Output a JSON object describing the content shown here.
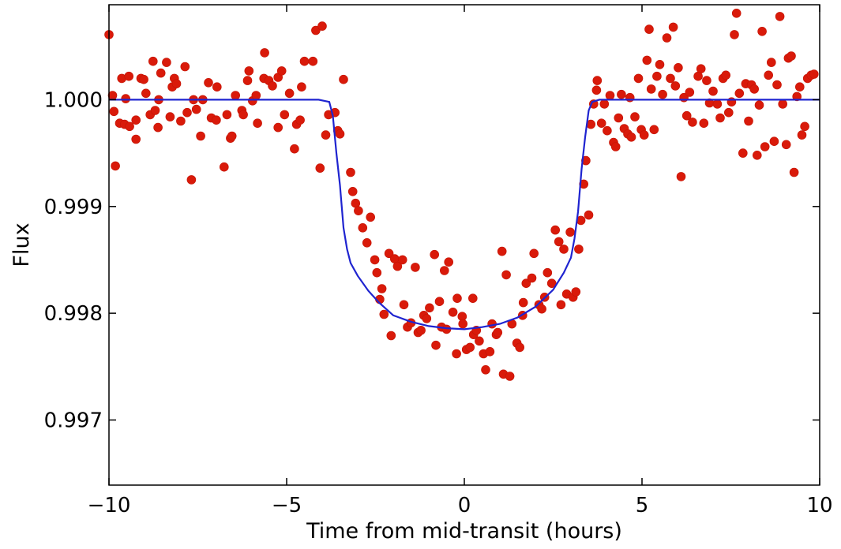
{
  "chart_data": {
    "type": "scatter",
    "xlabel": "Time from mid-transit (hours)",
    "ylabel": "Flux",
    "xlim": [
      -10,
      10
    ],
    "ylim": [
      0.99639,
      1.00089
    ],
    "x_ticks": [
      -10,
      -5,
      0,
      5,
      10
    ],
    "x_tick_labels": [
      "−10",
      "−5",
      "0",
      "5",
      "10"
    ],
    "y_ticks": [
      0.997,
      0.998,
      0.999,
      1.0
    ],
    "y_tick_labels": [
      "0.997",
      "0.998",
      "0.999",
      "1.000"
    ],
    "grid": false,
    "series": [
      {
        "kind": "points",
        "color": "#d91a0a",
        "points": [
          [
            -10.0,
            1.00061
          ],
          [
            -9.9,
            1.00004
          ],
          [
            -9.86,
            0.99989
          ],
          [
            -9.82,
            0.99938
          ],
          [
            -9.7,
            0.99978
          ],
          [
            -9.64,
            1.0002
          ],
          [
            -9.56,
            0.99977
          ],
          [
            -9.53,
            1.00001
          ],
          [
            -9.44,
            1.00022
          ],
          [
            -9.42,
            0.99975
          ],
          [
            -9.24,
            0.99981
          ],
          [
            -9.24,
            0.99963
          ],
          [
            -9.1,
            1.0002
          ],
          [
            -9.02,
            1.00019
          ],
          [
            -8.96,
            1.00006
          ],
          [
            -8.84,
            0.99986
          ],
          [
            -8.76,
            1.00036
          ],
          [
            -8.7,
            0.9999
          ],
          [
            -8.62,
            0.99974
          ],
          [
            -8.6,
            1.0
          ],
          [
            -8.54,
            1.00025
          ],
          [
            -8.38,
            1.00035
          ],
          [
            -8.28,
            0.99984
          ],
          [
            -8.22,
            1.00012
          ],
          [
            -8.16,
            1.0002
          ],
          [
            -8.1,
            1.00015
          ],
          [
            -7.98,
            0.9998
          ],
          [
            -7.86,
            1.00031
          ],
          [
            -7.8,
            0.99988
          ],
          [
            -7.68,
            0.99925
          ],
          [
            -7.62,
            1.0
          ],
          [
            -7.54,
            0.99991
          ],
          [
            -7.42,
            0.99966
          ],
          [
            -7.36,
            1.0
          ],
          [
            -7.2,
            1.00016
          ],
          [
            -7.12,
            0.99983
          ],
          [
            -6.98,
            0.99981
          ],
          [
            -6.96,
            1.00012
          ],
          [
            -6.76,
            0.99937
          ],
          [
            -6.68,
            0.99986
          ],
          [
            -6.58,
            0.99964
          ],
          [
            -6.54,
            0.99966
          ],
          [
            -6.44,
            1.00004
          ],
          [
            -6.26,
            0.9999
          ],
          [
            -6.22,
            0.99986
          ],
          [
            -6.1,
            1.00018
          ],
          [
            -6.06,
            1.00027
          ],
          [
            -5.96,
            0.99999
          ],
          [
            -5.86,
            1.00004
          ],
          [
            -5.82,
            0.99978
          ],
          [
            -5.64,
            1.0002
          ],
          [
            -5.62,
            1.00044
          ],
          [
            -5.5,
            1.00018
          ],
          [
            -5.4,
            1.00013
          ],
          [
            -5.24,
            0.99974
          ],
          [
            -5.24,
            1.00021
          ],
          [
            -5.14,
            1.00027
          ],
          [
            -5.06,
            0.99986
          ],
          [
            -4.92,
            1.00006
          ],
          [
            -4.78,
            0.99954
          ],
          [
            -4.72,
            0.99977
          ],
          [
            -4.62,
            0.99981
          ],
          [
            -4.58,
            1.00012
          ],
          [
            -4.5,
            1.00036
          ],
          [
            -4.26,
            1.00036
          ],
          [
            -4.18,
            1.00065
          ],
          [
            -4.06,
            0.99936
          ],
          [
            -4.0,
            1.00069
          ],
          [
            -3.9,
            0.99967
          ],
          [
            -3.82,
            0.99986
          ],
          [
            -3.64,
            0.99988
          ],
          [
            -3.56,
            0.99971
          ],
          [
            -3.5,
            0.99968
          ],
          [
            -3.4,
            1.00019
          ],
          [
            -3.2,
            0.99932
          ],
          [
            -3.14,
            0.99914
          ],
          [
            -3.06,
            0.99903
          ],
          [
            -2.98,
            0.99896
          ],
          [
            -2.86,
            0.9988
          ],
          [
            -2.74,
            0.99866
          ],
          [
            -2.64,
            0.9989
          ],
          [
            -2.52,
            0.9985
          ],
          [
            -2.46,
            0.99838
          ],
          [
            -2.38,
            0.99813
          ],
          [
            -2.32,
            0.99823
          ],
          [
            -2.26,
            0.99799
          ],
          [
            -2.12,
            0.99856
          ],
          [
            -2.06,
            0.99779
          ],
          [
            -1.96,
            0.99851
          ],
          [
            -1.88,
            0.99844
          ],
          [
            -1.74,
            0.9985
          ],
          [
            -1.7,
            0.99808
          ],
          [
            -1.6,
            0.99787
          ],
          [
            -1.5,
            0.99791
          ],
          [
            -1.38,
            0.99843
          ],
          [
            -1.3,
            0.99782
          ],
          [
            -1.22,
            0.99784
          ],
          [
            -1.14,
            0.99798
          ],
          [
            -1.06,
            0.99795
          ],
          [
            -0.98,
            0.99805
          ],
          [
            -0.84,
            0.99855
          ],
          [
            -0.8,
            0.9977
          ],
          [
            -0.7,
            0.99811
          ],
          [
            -0.64,
            0.99787
          ],
          [
            -0.56,
            0.9984
          ],
          [
            -0.5,
            0.99785
          ],
          [
            -0.44,
            0.99848
          ],
          [
            -0.32,
            0.99801
          ],
          [
            -0.22,
            0.99762
          ],
          [
            -0.2,
            0.99814
          ],
          [
            -0.06,
            0.99797
          ],
          [
            -0.04,
            0.9979
          ],
          [
            0.06,
            0.99766
          ],
          [
            0.16,
            0.99768
          ],
          [
            0.24,
            0.99814
          ],
          [
            0.26,
            0.9978
          ],
          [
            0.34,
            0.99784
          ],
          [
            0.42,
            0.99774
          ],
          [
            0.54,
            0.99762
          ],
          [
            0.6,
            0.99747
          ],
          [
            0.72,
            0.99764
          ],
          [
            0.78,
            0.9979
          ],
          [
            0.9,
            0.9978
          ],
          [
            0.94,
            0.99782
          ],
          [
            1.06,
            0.99858
          ],
          [
            1.1,
            0.99743
          ],
          [
            1.18,
            0.99836
          ],
          [
            1.28,
            0.99741
          ],
          [
            1.34,
            0.9979
          ],
          [
            1.48,
            0.99772
          ],
          [
            1.56,
            0.99768
          ],
          [
            1.64,
            0.99798
          ],
          [
            1.66,
            0.9981
          ],
          [
            1.74,
            0.99828
          ],
          [
            1.9,
            0.99833
          ],
          [
            1.96,
            0.99856
          ],
          [
            2.1,
            0.99808
          ],
          [
            2.18,
            0.99804
          ],
          [
            2.26,
            0.99815
          ],
          [
            2.34,
            0.99838
          ],
          [
            2.46,
            0.99828
          ],
          [
            2.56,
            0.99878
          ],
          [
            2.66,
            0.99867
          ],
          [
            2.72,
            0.99808
          ],
          [
            2.8,
            0.9986
          ],
          [
            2.88,
            0.99818
          ],
          [
            2.98,
            0.99876
          ],
          [
            3.06,
            0.99815
          ],
          [
            3.14,
            0.9982
          ],
          [
            3.22,
            0.9986
          ],
          [
            3.28,
            0.99887
          ],
          [
            3.36,
            0.99921
          ],
          [
            3.42,
            0.99943
          ],
          [
            3.5,
            0.99892
          ],
          [
            3.56,
            0.99977
          ],
          [
            3.64,
            0.99996
          ],
          [
            3.72,
            1.00009
          ],
          [
            3.74,
            1.00018
          ],
          [
            3.86,
            0.99978
          ],
          [
            3.94,
            0.99996
          ],
          [
            4.02,
            0.99971
          ],
          [
            4.1,
            1.00004
          ],
          [
            4.2,
            0.9996
          ],
          [
            4.26,
            0.99956
          ],
          [
            4.34,
            0.99983
          ],
          [
            4.42,
            1.00005
          ],
          [
            4.5,
            0.99973
          ],
          [
            4.6,
            0.99968
          ],
          [
            4.66,
            1.00002
          ],
          [
            4.7,
            0.99965
          ],
          [
            4.8,
            0.99984
          ],
          [
            4.9,
            1.0002
          ],
          [
            4.98,
            0.99972
          ],
          [
            5.06,
            0.99967
          ],
          [
            5.14,
            1.00037
          ],
          [
            5.2,
            1.00066
          ],
          [
            5.26,
            1.0001
          ],
          [
            5.34,
            0.99972
          ],
          [
            5.42,
            1.00022
          ],
          [
            5.5,
            1.00033
          ],
          [
            5.58,
            1.00005
          ],
          [
            5.7,
            1.00058
          ],
          [
            5.8,
            1.0002
          ],
          [
            5.88,
            1.00068
          ],
          [
            5.94,
            1.00013
          ],
          [
            6.02,
            1.0003
          ],
          [
            6.1,
            0.99928
          ],
          [
            6.18,
            1.00002
          ],
          [
            6.26,
            0.99985
          ],
          [
            6.34,
            1.00007
          ],
          [
            6.42,
            0.99979
          ],
          [
            6.58,
            1.00022
          ],
          [
            6.66,
            1.00029
          ],
          [
            6.74,
            0.99978
          ],
          [
            6.82,
            1.00018
          ],
          [
            6.9,
            0.99997
          ],
          [
            7.0,
            1.00008
          ],
          [
            7.12,
            0.99996
          ],
          [
            7.2,
            0.99983
          ],
          [
            7.28,
            1.0002
          ],
          [
            7.36,
            1.00023
          ],
          [
            7.44,
            0.99988
          ],
          [
            7.52,
            0.99998
          ],
          [
            7.6,
            1.00061
          ],
          [
            7.66,
            1.00081
          ],
          [
            7.74,
            1.00006
          ],
          [
            7.84,
            0.9995
          ],
          [
            7.92,
            1.00015
          ],
          [
            8.0,
            0.9998
          ],
          [
            8.08,
            1.00014
          ],
          [
            8.16,
            1.0001
          ],
          [
            8.24,
            0.99948
          ],
          [
            8.3,
            0.99995
          ],
          [
            8.38,
            1.00064
          ],
          [
            8.46,
            0.99956
          ],
          [
            8.56,
            1.00023
          ],
          [
            8.64,
            1.00035
          ],
          [
            8.72,
            0.99961
          ],
          [
            8.8,
            1.00014
          ],
          [
            8.88,
            1.00078
          ],
          [
            8.96,
            0.99996
          ],
          [
            9.06,
            0.99958
          ],
          [
            9.12,
            1.00039
          ],
          [
            9.2,
            1.00041
          ],
          [
            9.28,
            0.99932
          ],
          [
            9.36,
            1.00003
          ],
          [
            9.44,
            1.00012
          ],
          [
            9.5,
            0.99967
          ],
          [
            9.58,
            0.99975
          ],
          [
            9.66,
            1.0002
          ],
          [
            9.76,
            1.00023
          ],
          [
            9.84,
            1.00024
          ]
        ]
      },
      {
        "kind": "model-line",
        "color": "#1f24d0",
        "points": [
          [
            -10,
            1.0
          ],
          [
            -4.1,
            1.0
          ],
          [
            -3.8,
            0.99998
          ],
          [
            -3.7,
            0.99985
          ],
          [
            -3.6,
            0.9995
          ],
          [
            -3.5,
            0.9992
          ],
          [
            -3.4,
            0.9988
          ],
          [
            -3.3,
            0.9986
          ],
          [
            -3.2,
            0.99847
          ],
          [
            -3.0,
            0.99835
          ],
          [
            -2.7,
            0.99821
          ],
          [
            -2.4,
            0.9981
          ],
          [
            -2.0,
            0.99798
          ],
          [
            -1.5,
            0.99792
          ],
          [
            -1.0,
            0.99788
          ],
          [
            -0.5,
            0.99786
          ],
          [
            0.0,
            0.99785
          ],
          [
            0.5,
            0.99787
          ],
          [
            1.0,
            0.9979
          ],
          [
            1.5,
            0.99796
          ],
          [
            2.0,
            0.99806
          ],
          [
            2.5,
            0.99822
          ],
          [
            2.8,
            0.99838
          ],
          [
            3.0,
            0.99852
          ],
          [
            3.1,
            0.9987
          ],
          [
            3.2,
            0.99895
          ],
          [
            3.3,
            0.99935
          ],
          [
            3.4,
            0.99965
          ],
          [
            3.5,
            0.9999
          ],
          [
            3.6,
            0.99998
          ],
          [
            3.8,
            1.0
          ],
          [
            10,
            1.0
          ]
        ]
      }
    ]
  }
}
